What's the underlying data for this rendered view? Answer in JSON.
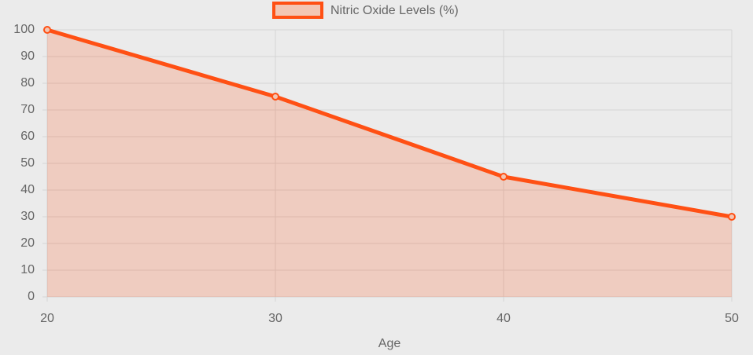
{
  "chart_data": {
    "type": "line",
    "x": [
      20,
      30,
      40,
      50
    ],
    "series": [
      {
        "name": "Nitric Oxide Levels (%)",
        "color": "#ff5014",
        "values": [
          100,
          75,
          45,
          30
        ]
      }
    ],
    "xlabel": "Age",
    "xlim": [
      20,
      50
    ],
    "xticks": [
      20,
      30,
      40,
      50
    ],
    "ylim": [
      0,
      100
    ],
    "yticks": [
      0,
      10,
      20,
      30,
      40,
      50,
      60,
      70,
      80,
      90,
      100
    ],
    "grid": true,
    "fill": true,
    "legend": "top"
  }
}
